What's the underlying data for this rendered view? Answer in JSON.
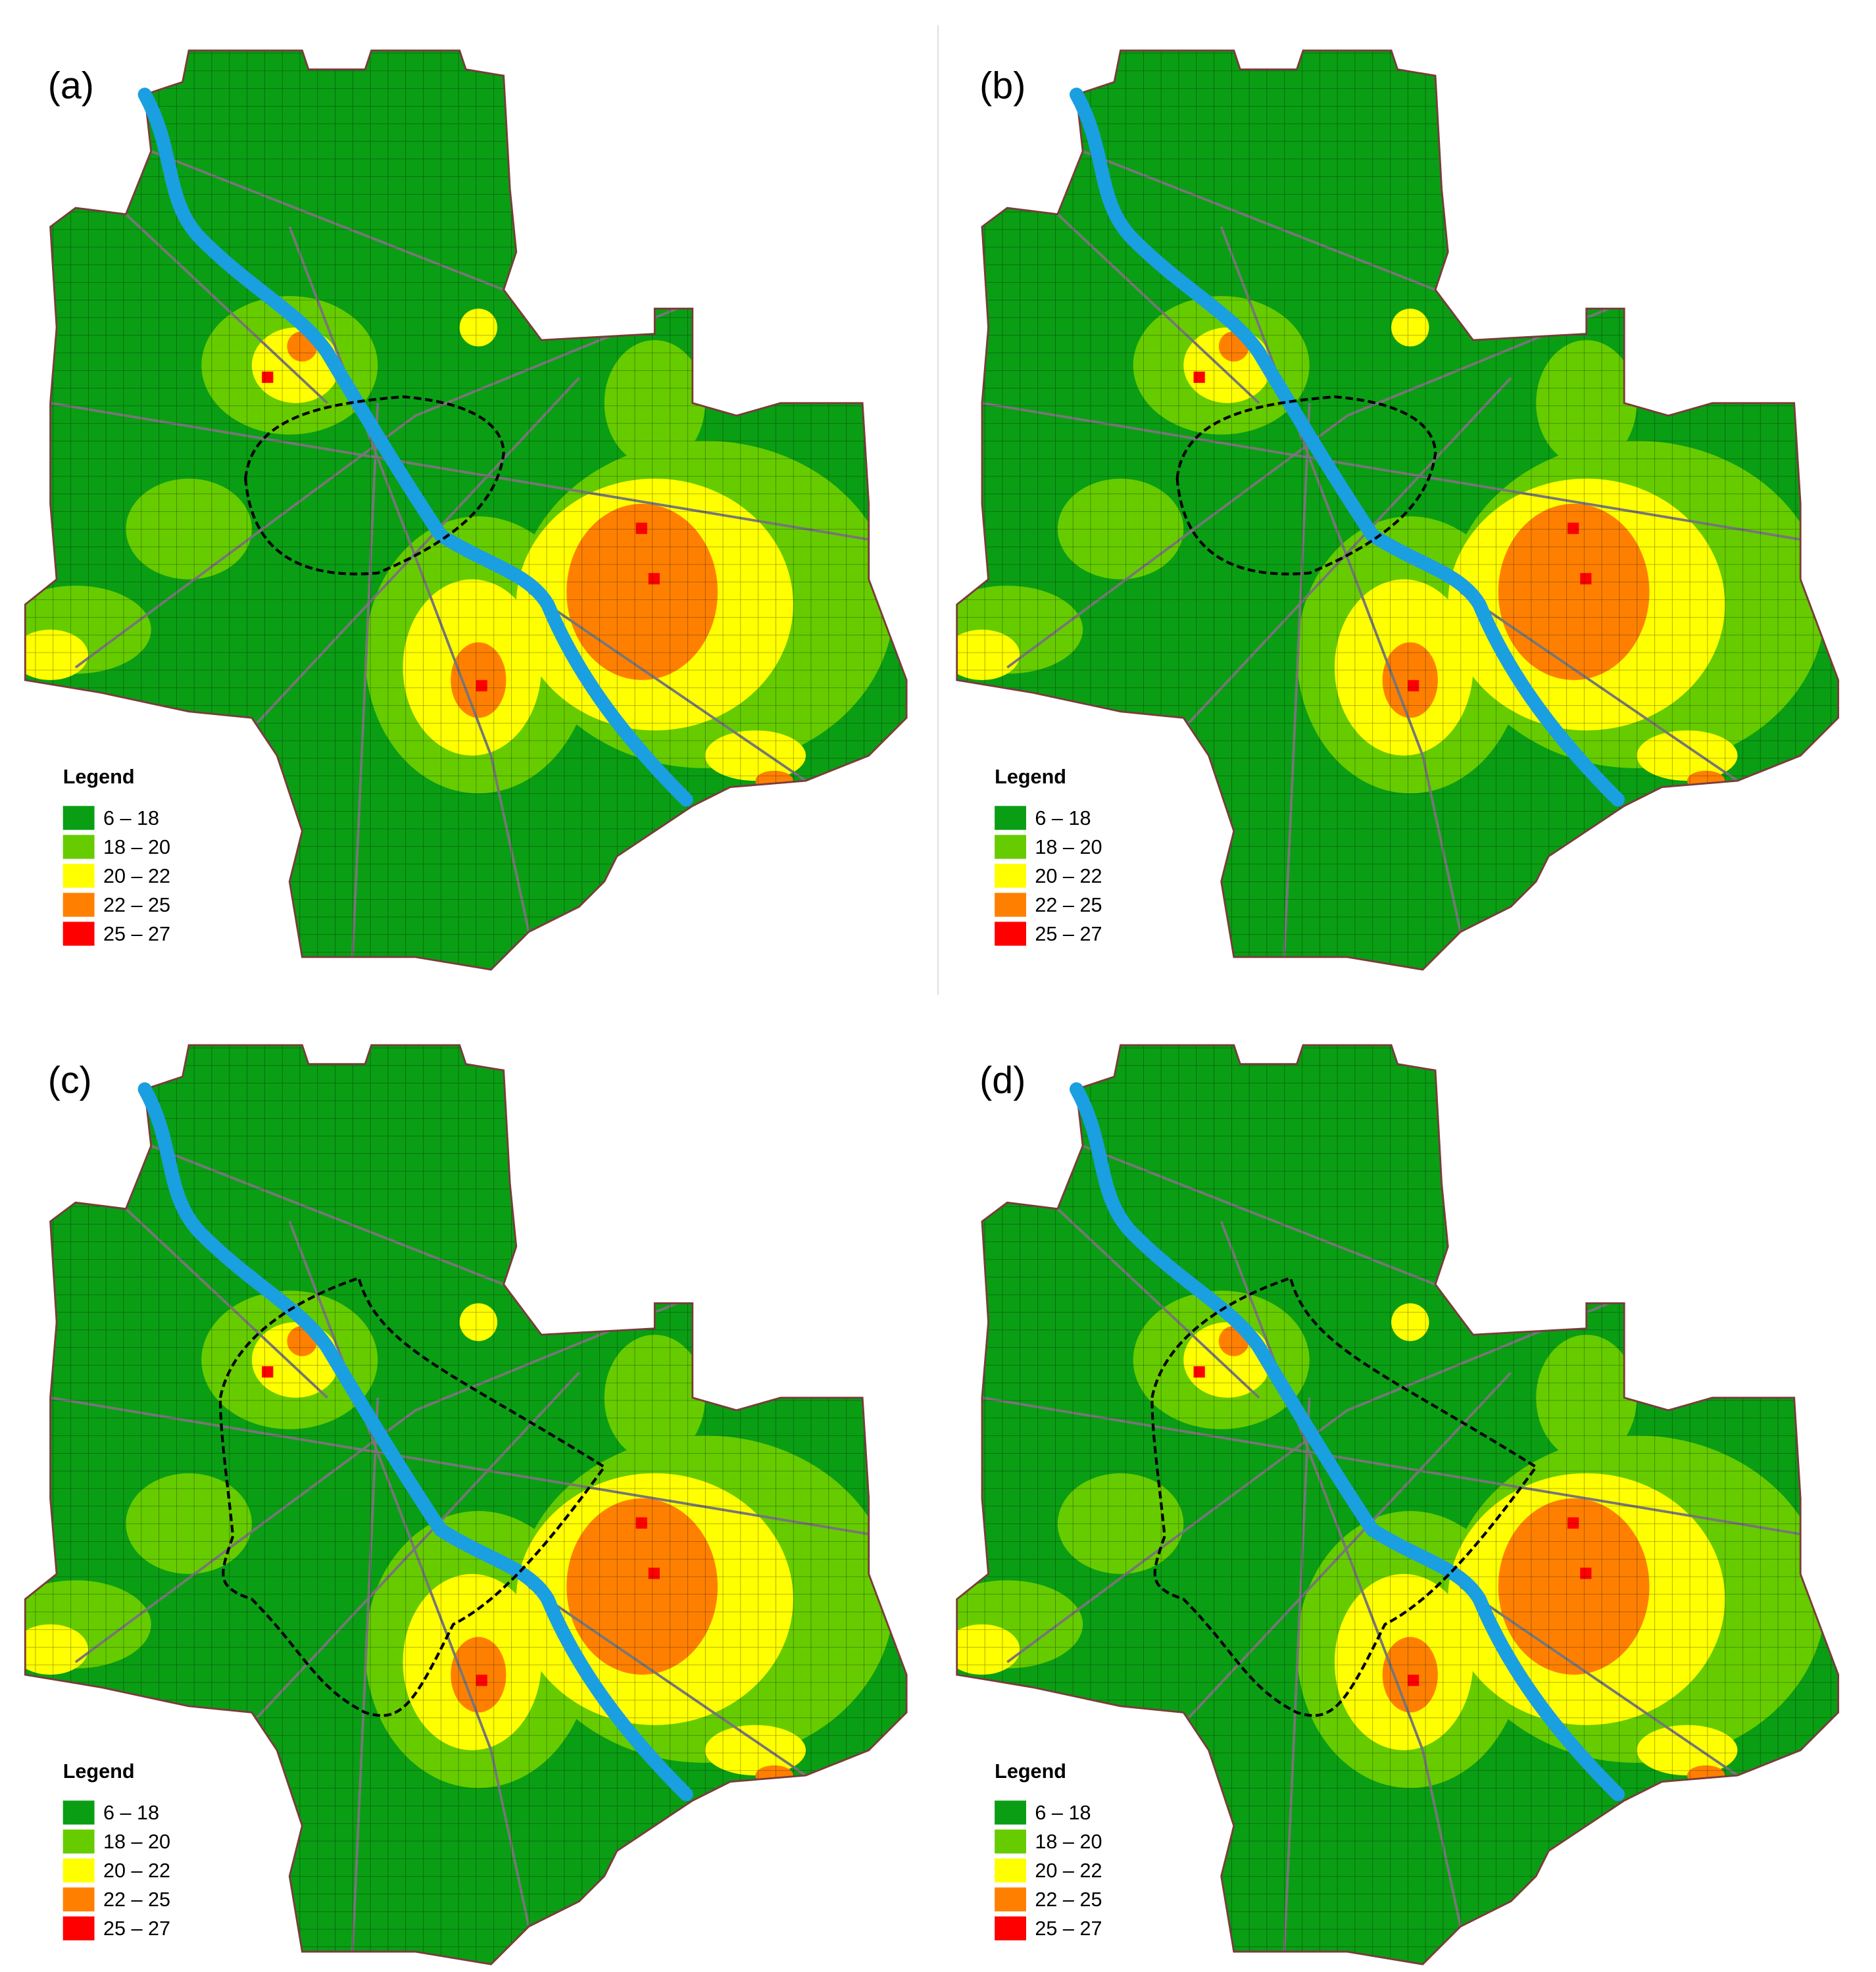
{
  "panels": [
    {
      "label": "(a)",
      "ring": "small"
    },
    {
      "label": "(b)",
      "ring": "small"
    },
    {
      "label": "(c)",
      "ring": "large"
    },
    {
      "label": "(d)",
      "ring": "large"
    }
  ],
  "legend": {
    "title": "Legend",
    "items": [
      {
        "label": "6 – 18",
        "color": "#0a9e14"
      },
      {
        "label": "18 – 20",
        "color": "#66cc00"
      },
      {
        "label": "20 – 22",
        "color": "#ffff00"
      },
      {
        "label": "22 – 25",
        "color": "#ff8000"
      },
      {
        "label": "25 – 27",
        "color": "#ff0000"
      }
    ]
  }
}
